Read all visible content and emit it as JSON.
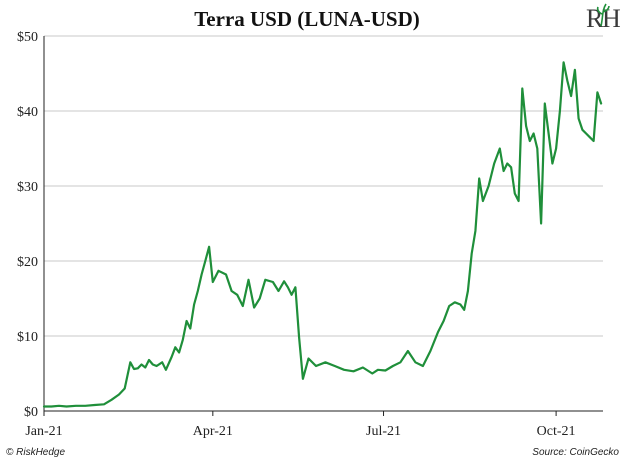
{
  "chart_data": {
    "type": "line",
    "title": "Terra USD (LUNA-USD)",
    "xlabel": "",
    "ylabel": "",
    "ylim": [
      0,
      50
    ],
    "xlim": [
      "2021-01-01",
      "2021-10-26"
    ],
    "grid": "horizontal",
    "line_color": "#1f8f3a",
    "y_ticks": [
      {
        "value": 0,
        "label": "$0"
      },
      {
        "value": 10,
        "label": "$10"
      },
      {
        "value": 20,
        "label": "$20"
      },
      {
        "value": 30,
        "label": "$30"
      },
      {
        "value": 40,
        "label": "$40"
      },
      {
        "value": 50,
        "label": "$50"
      }
    ],
    "x_ticks": [
      {
        "value": "2021-01-01",
        "label": "Jan-21"
      },
      {
        "value": "2021-04-01",
        "label": "Apr-21"
      },
      {
        "value": "2021-07-01",
        "label": "Jul-21"
      },
      {
        "value": "2021-10-01",
        "label": "Oct-21"
      }
    ],
    "series": [
      {
        "name": "",
        "x": [
          "2021-01-01",
          "2021-01-05",
          "2021-01-09",
          "2021-01-13",
          "2021-01-18",
          "2021-01-23",
          "2021-01-28",
          "2021-02-02",
          "2021-02-06",
          "2021-02-10",
          "2021-02-13",
          "2021-02-16",
          "2021-02-18",
          "2021-02-20",
          "2021-02-22",
          "2021-02-24",
          "2021-02-26",
          "2021-02-28",
          "2021-03-02",
          "2021-03-05",
          "2021-03-07",
          "2021-03-10",
          "2021-03-12",
          "2021-03-14",
          "2021-03-16",
          "2021-03-18",
          "2021-03-20",
          "2021-03-22",
          "2021-03-24",
          "2021-03-26",
          "2021-03-28",
          "2021-03-30",
          "2021-04-01",
          "2021-04-04",
          "2021-04-08",
          "2021-04-11",
          "2021-04-14",
          "2021-04-17",
          "2021-04-20",
          "2021-04-23",
          "2021-04-26",
          "2021-04-29",
          "2021-05-03",
          "2021-05-06",
          "2021-05-09",
          "2021-05-11",
          "2021-05-13",
          "2021-05-15",
          "2021-05-17",
          "2021-05-19",
          "2021-05-22",
          "2021-05-26",
          "2021-05-31",
          "2021-06-05",
          "2021-06-10",
          "2021-06-15",
          "2021-06-20",
          "2021-06-25",
          "2021-06-28",
          "2021-07-02",
          "2021-07-06",
          "2021-07-10",
          "2021-07-14",
          "2021-07-18",
          "2021-07-22",
          "2021-07-26",
          "2021-07-30",
          "2021-08-02",
          "2021-08-05",
          "2021-08-08",
          "2021-08-11",
          "2021-08-13",
          "2021-08-15",
          "2021-08-17",
          "2021-08-19",
          "2021-08-21",
          "2021-08-23",
          "2021-08-26",
          "2021-08-29",
          "2021-09-01",
          "2021-09-03",
          "2021-09-05",
          "2021-09-07",
          "2021-09-09",
          "2021-09-11",
          "2021-09-13",
          "2021-09-15",
          "2021-09-17",
          "2021-09-19",
          "2021-09-21",
          "2021-09-23",
          "2021-09-25",
          "2021-09-27",
          "2021-09-29",
          "2021-10-01",
          "2021-10-03",
          "2021-10-05",
          "2021-10-07",
          "2021-10-09",
          "2021-10-11",
          "2021-10-13",
          "2021-10-15",
          "2021-10-17",
          "2021-10-19",
          "2021-10-21",
          "2021-10-23",
          "2021-10-25"
        ],
        "values": [
          0.6,
          0.6,
          0.7,
          0.6,
          0.7,
          0.7,
          0.8,
          0.9,
          1.5,
          2.2,
          3.0,
          6.5,
          5.6,
          5.7,
          6.2,
          5.8,
          6.8,
          6.2,
          6.0,
          6.5,
          5.5,
          7.2,
          8.5,
          7.8,
          9.5,
          12.0,
          11.0,
          14.2,
          16.0,
          18.2,
          20.0,
          21.9,
          17.2,
          18.7,
          18.2,
          16.0,
          15.5,
          14.0,
          17.5,
          13.8,
          15.0,
          17.5,
          17.2,
          16.0,
          17.3,
          16.5,
          15.5,
          16.5,
          9.8,
          4.3,
          7.0,
          6.0,
          6.5,
          6.0,
          5.5,
          5.3,
          5.8,
          5.0,
          5.5,
          5.4,
          6.0,
          6.5,
          8.0,
          6.5,
          6.0,
          8.0,
          10.5,
          12.0,
          14.0,
          14.5,
          14.2,
          13.5,
          16.0,
          21.0,
          24.0,
          31.0,
          28.0,
          30.0,
          33.0,
          35.0,
          32.0,
          33.0,
          32.5,
          29.0,
          28.0,
          43.0,
          38.0,
          36.0,
          37.0,
          35.0,
          25.0,
          41.0,
          37.0,
          33.0,
          35.0,
          40.0,
          46.5,
          44.0,
          42.0,
          45.5,
          39.0,
          37.5,
          37.0,
          36.5,
          36.0,
          42.5,
          41.0
        ]
      }
    ]
  },
  "footer": {
    "left": "© RiskHedge",
    "right": "Source: CoinGecko"
  },
  "logo": {
    "text": "RH",
    "color": "#1f8f3a"
  }
}
